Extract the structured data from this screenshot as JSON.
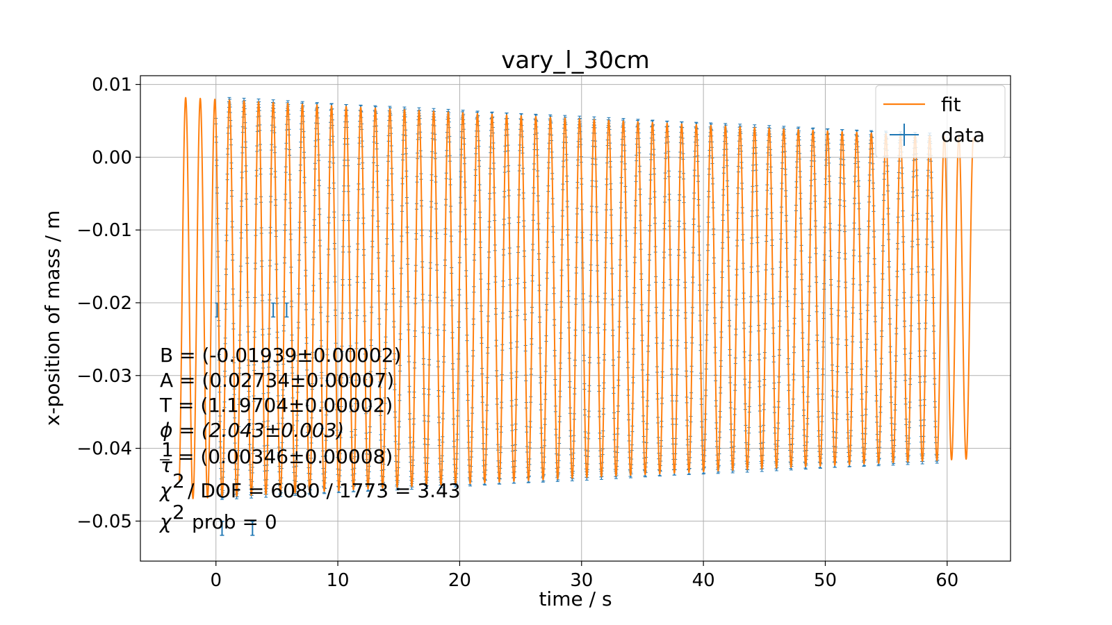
{
  "chart_data": {
    "type": "scatter",
    "title": "vary_l_30cm",
    "xlabel": "time / s",
    "ylabel": "x-position of mass / m",
    "xlim": [
      -6.2,
      65.2
    ],
    "ylim": [
      -0.0555,
      0.0112
    ],
    "xticks": [
      0,
      10,
      20,
      30,
      40,
      50,
      60
    ],
    "xtick_labels": [
      "0",
      "10",
      "20",
      "30",
      "40",
      "50",
      "60"
    ],
    "yticks": [
      0.01,
      0.0,
      -0.01,
      -0.02,
      -0.03,
      -0.04,
      -0.05
    ],
    "ytick_labels": [
      "0.01",
      "0.00",
      "−0.01",
      "−0.02",
      "−0.03",
      "−0.04",
      "−0.05"
    ],
    "grid": true,
    "legend_position": "top-right",
    "series": [
      {
        "name": "fit",
        "kind": "line",
        "color": "#ff7f0e",
        "model": "B + A*exp(-t/tau)*sin(2*pi*t/T + phi)",
        "x_range": [
          -3.0,
          62.2
        ],
        "params": {
          "B": -0.01939,
          "A": 0.02734,
          "T": 1.19704,
          "phi": 2.043,
          "inv_tau": 0.00346
        }
      },
      {
        "name": "data",
        "kind": "errorbar",
        "color": "#1f77b4",
        "x_range": [
          0.0,
          59.2
        ],
        "outliers": [
          {
            "x": 0.1,
            "y": -0.021
          },
          {
            "x": 4.7,
            "y": -0.021
          },
          {
            "x": 5.8,
            "y": -0.021
          },
          {
            "x": 0.5,
            "y": -0.051
          },
          {
            "x": 3.0,
            "y": -0.051
          }
        ]
      }
    ],
    "annotations": [
      "B = (-0.01939±0.00002)",
      "A = (0.02734±0.00007)",
      "T = (1.19704±0.00002)",
      "ϕ = (2.043±0.003)",
      "= (0.00346±0.00008)",
      "χ",
      "/ DOF = 6080 / 1773 = 3.43",
      "prob = 0",
      "2",
      "1",
      "τ"
    ]
  }
}
